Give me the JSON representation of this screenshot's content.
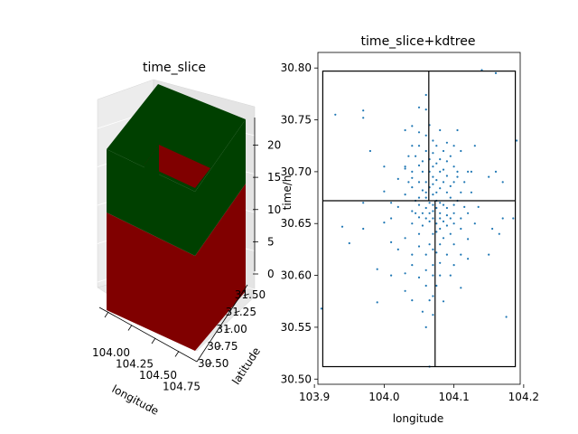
{
  "chart_data": [
    {
      "type": "bar3d",
      "title": "time_slice",
      "xlabel": "longitude",
      "ylabel": "latitude",
      "zlabel": "time/h",
      "xticks": [
        "104.00",
        "104.25",
        "104.50",
        "104.75"
      ],
      "yticks": [
        "30.50",
        "30.75",
        "31.00",
        "31.25",
        "31.50"
      ],
      "zticks": [
        "0",
        "5",
        "10",
        "15",
        "20"
      ],
      "zlim": [
        0,
        24
      ],
      "bars": [
        {
          "name": "lower",
          "z": [
            0,
            12
          ],
          "color": "#800000"
        },
        {
          "name": "upper",
          "z": [
            12,
            24
          ],
          "color": "#004000"
        }
      ],
      "top_face_color": "#800000",
      "grid": true
    },
    {
      "type": "scatter",
      "title": "time_slice+kdtree",
      "xlabel": "longitude",
      "ylabel": "",
      "xlim": [
        103.905,
        104.195
      ],
      "ylim": [
        30.495,
        30.815
      ],
      "xticks": [
        "103.9",
        "104.0",
        "104.1",
        "104.2"
      ],
      "yticks": [
        "30.50",
        "30.55",
        "30.60",
        "30.65",
        "30.70",
        "30.75",
        "30.80"
      ],
      "point_color": "#1f77b4",
      "kdtree_lines": {
        "outer_box": {
          "x": [
            103.912,
            104.188
          ],
          "y": [
            30.512,
            30.797
          ]
        },
        "horizontal_split_y": 30.672,
        "upper_split_x": 104.064,
        "lower_split_x": 104.073
      },
      "points": [
        [
          103.91,
          30.568
        ],
        [
          103.93,
          30.755
        ],
        [
          103.94,
          30.647
        ],
        [
          103.95,
          30.631
        ],
        [
          103.97,
          30.645
        ],
        [
          103.97,
          30.67
        ],
        [
          103.97,
          30.752
        ],
        [
          103.97,
          30.759
        ],
        [
          103.98,
          30.72
        ],
        [
          103.99,
          30.606
        ],
        [
          103.99,
          30.574
        ],
        [
          104.0,
          30.705
        ],
        [
          104.0,
          30.681
        ],
        [
          104.0,
          30.651
        ],
        [
          104.01,
          30.655
        ],
        [
          104.01,
          30.67
        ],
        [
          104.01,
          30.632
        ],
        [
          104.01,
          30.6
        ],
        [
          104.02,
          30.666
        ],
        [
          104.02,
          30.693
        ],
        [
          104.02,
          30.625
        ],
        [
          104.03,
          30.636
        ],
        [
          104.03,
          30.678
        ],
        [
          104.03,
          30.703
        ],
        [
          104.03,
          30.705
        ],
        [
          104.03,
          30.602
        ],
        [
          104.03,
          30.585
        ],
        [
          104.03,
          30.74
        ],
        [
          104.035,
          30.715
        ],
        [
          104.035,
          30.69
        ],
        [
          104.04,
          30.662
        ],
        [
          104.04,
          30.65
        ],
        [
          104.04,
          30.685
        ],
        [
          104.04,
          30.7
        ],
        [
          104.04,
          30.694
        ],
        [
          104.04,
          30.62
        ],
        [
          104.04,
          30.61
        ],
        [
          104.04,
          30.576
        ],
        [
          104.04,
          30.744
        ],
        [
          104.04,
          30.725
        ],
        [
          104.045,
          30.66
        ],
        [
          104.045,
          30.672
        ],
        [
          104.045,
          30.715
        ],
        [
          104.05,
          30.656
        ],
        [
          104.05,
          30.668
        ],
        [
          104.05,
          30.675
        ],
        [
          104.05,
          30.69
        ],
        [
          104.05,
          30.706
        ],
        [
          104.05,
          30.725
        ],
        [
          104.05,
          30.64
        ],
        [
          104.05,
          30.628
        ],
        [
          104.05,
          30.598
        ],
        [
          104.05,
          30.762
        ],
        [
          104.05,
          30.738
        ],
        [
          104.055,
          30.648
        ],
        [
          104.055,
          30.682
        ],
        [
          104.055,
          30.7
        ],
        [
          104.055,
          30.71
        ],
        [
          104.055,
          30.66
        ],
        [
          104.055,
          30.565
        ],
        [
          104.06,
          30.655
        ],
        [
          104.06,
          30.665
        ],
        [
          104.06,
          30.675
        ],
        [
          104.06,
          30.68
        ],
        [
          104.06,
          30.69
        ],
        [
          104.06,
          30.72
        ],
        [
          104.06,
          30.735
        ],
        [
          104.06,
          30.774
        ],
        [
          104.06,
          30.76
        ],
        [
          104.06,
          30.62
        ],
        [
          104.06,
          30.605
        ],
        [
          104.06,
          30.59
        ],
        [
          104.06,
          30.55
        ],
        [
          104.065,
          30.652
        ],
        [
          104.065,
          30.66
        ],
        [
          104.065,
          30.67
        ],
        [
          104.065,
          30.685
        ],
        [
          104.065,
          30.7
        ],
        [
          104.065,
          30.712
        ],
        [
          104.065,
          30.745
        ],
        [
          104.065,
          30.63
        ],
        [
          104.065,
          30.576
        ],
        [
          104.065,
          30.512
        ],
        [
          104.07,
          30.655
        ],
        [
          104.07,
          30.662
        ],
        [
          104.07,
          30.668
        ],
        [
          104.07,
          30.678
        ],
        [
          104.07,
          30.688
        ],
        [
          104.07,
          30.695
        ],
        [
          104.07,
          30.705
        ],
        [
          104.07,
          30.718
        ],
        [
          104.07,
          30.73
        ],
        [
          104.07,
          30.64
        ],
        [
          104.07,
          30.625
        ],
        [
          104.07,
          30.61
        ],
        [
          104.07,
          30.6
        ],
        [
          104.07,
          30.58
        ],
        [
          104.07,
          30.562
        ],
        [
          104.075,
          30.65
        ],
        [
          104.075,
          30.665
        ],
        [
          104.075,
          30.672
        ],
        [
          104.075,
          30.68
        ],
        [
          104.075,
          30.692
        ],
        [
          104.075,
          30.708
        ],
        [
          104.075,
          30.725
        ],
        [
          104.075,
          30.642
        ],
        [
          104.075,
          30.622
        ],
        [
          104.075,
          30.59
        ],
        [
          104.08,
          30.655
        ],
        [
          104.08,
          30.66
        ],
        [
          104.08,
          30.67
        ],
        [
          104.08,
          30.684
        ],
        [
          104.08,
          30.7
        ],
        [
          104.08,
          30.712
        ],
        [
          104.08,
          30.74
        ],
        [
          104.08,
          30.645
        ],
        [
          104.08,
          30.63
        ],
        [
          104.08,
          30.612
        ],
        [
          104.08,
          30.6
        ],
        [
          104.085,
          30.652
        ],
        [
          104.085,
          30.668
        ],
        [
          104.085,
          30.69
        ],
        [
          104.085,
          30.702
        ],
        [
          104.085,
          30.72
        ],
        [
          104.085,
          30.636
        ],
        [
          104.085,
          30.575
        ],
        [
          104.09,
          30.658
        ],
        [
          104.09,
          30.665
        ],
        [
          104.09,
          30.68
        ],
        [
          104.09,
          30.696
        ],
        [
          104.09,
          30.71
        ],
        [
          104.09,
          30.728
        ],
        [
          104.09,
          30.648
        ],
        [
          104.09,
          30.62
        ],
        [
          104.095,
          30.655
        ],
        [
          104.095,
          30.675
        ],
        [
          104.095,
          30.686
        ],
        [
          104.095,
          30.715
        ],
        [
          104.095,
          30.64
        ],
        [
          104.095,
          30.6
        ],
        [
          104.1,
          30.66
        ],
        [
          104.1,
          30.668
        ],
        [
          104.1,
          30.69
        ],
        [
          104.1,
          30.705
        ],
        [
          104.1,
          30.725
        ],
        [
          104.1,
          30.65
        ],
        [
          104.1,
          30.63
        ],
        [
          104.1,
          30.61
        ],
        [
          104.105,
          30.672
        ],
        [
          104.105,
          30.695
        ],
        [
          104.105,
          30.7
        ],
        [
          104.105,
          30.74
        ],
        [
          104.11,
          30.655
        ],
        [
          104.11,
          30.68
        ],
        [
          104.11,
          30.72
        ],
        [
          104.11,
          30.645
        ],
        [
          104.11,
          30.62
        ],
        [
          104.11,
          30.588
        ],
        [
          104.115,
          30.666
        ],
        [
          104.115,
          30.69
        ],
        [
          104.12,
          30.66
        ],
        [
          104.12,
          30.7
        ],
        [
          104.12,
          30.635
        ],
        [
          104.12,
          30.616
        ],
        [
          104.125,
          30.7
        ],
        [
          104.125,
          30.68
        ],
        [
          104.13,
          30.65
        ],
        [
          104.13,
          30.725
        ],
        [
          104.135,
          30.666
        ],
        [
          104.14,
          30.798
        ],
        [
          104.15,
          30.695
        ],
        [
          104.15,
          30.62
        ],
        [
          104.155,
          30.645
        ],
        [
          104.16,
          30.7
        ],
        [
          104.16,
          30.795
        ],
        [
          104.165,
          30.64
        ],
        [
          104.17,
          30.69
        ],
        [
          104.17,
          30.655
        ],
        [
          104.175,
          30.56
        ],
        [
          104.185,
          30.655
        ],
        [
          104.19,
          30.73
        ]
      ]
    }
  ]
}
